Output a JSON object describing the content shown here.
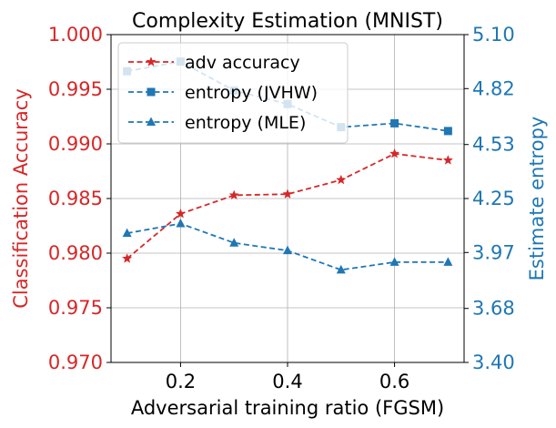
{
  "chart_data": {
    "type": "line",
    "title": "Complexity Estimation (MNIST)",
    "xlabel": "Adversarial training ratio (FGSM)",
    "ylabel_left": "Classification Accuracy",
    "ylabel_right": "Estimate entropy",
    "x": [
      0.1,
      0.2,
      0.3,
      0.4,
      0.5,
      0.6,
      0.7
    ],
    "xlim": [
      0.07,
      0.73
    ],
    "xticks": [
      0.2,
      0.4,
      0.6
    ],
    "xtick_labels": [
      "0.2",
      "0.4",
      "0.6"
    ],
    "ylim_left": [
      0.97,
      1.0
    ],
    "yticks_left": [
      0.97,
      0.975,
      0.98,
      0.985,
      0.99,
      0.995,
      1.0
    ],
    "ytick_labels_left": [
      "0.970",
      "0.975",
      "0.980",
      "0.985",
      "0.990",
      "0.995",
      "1.000"
    ],
    "ylim_right": [
      3.4,
      5.1
    ],
    "yticks_right": [
      3.4,
      3.68,
      3.97,
      4.25,
      4.53,
      4.82,
      5.1
    ],
    "ytick_labels_right": [
      "3.40",
      "3.68",
      "3.97",
      "4.25",
      "4.53",
      "4.82",
      "5.10"
    ],
    "grid": true,
    "legend_position": "top-left",
    "colors": {
      "left_axis": "#d62728",
      "right_axis": "#1f77b4"
    },
    "series": [
      {
        "name": "adv accuracy",
        "axis": "left",
        "color": "#d62728",
        "marker": "star",
        "values": [
          0.9795,
          0.9836,
          0.9853,
          0.9854,
          0.9867,
          0.9891,
          0.9885
        ]
      },
      {
        "name": "entropy (JVHW)",
        "axis": "right",
        "color": "#1f77b4",
        "marker": "square",
        "values": [
          4.91,
          4.96,
          4.81,
          4.74,
          4.62,
          4.64,
          4.6
        ]
      },
      {
        "name": "entropy (MLE)",
        "axis": "right",
        "color": "#1f77b4",
        "marker": "triangle",
        "values": [
          4.07,
          4.12,
          4.02,
          3.98,
          3.88,
          3.92,
          3.92
        ]
      }
    ]
  }
}
